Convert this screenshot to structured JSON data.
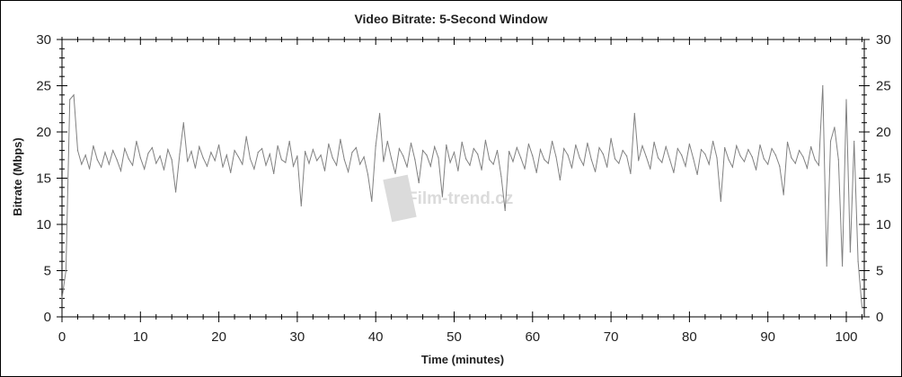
{
  "chart_data": {
    "type": "line",
    "title": "Video Bitrate: 5-Second Window",
    "xlabel": "Time (minutes)",
    "ylabel": "Bitrate (Mbps)",
    "xlim": [
      0,
      102.3
    ],
    "ylim": [
      0,
      30
    ],
    "x_ticks": [
      "0",
      "10",
      "20",
      "30",
      "40",
      "50",
      "60",
      "70",
      "80",
      "90",
      "100"
    ],
    "y_ticks": [
      "0",
      "5",
      "10",
      "15",
      "20",
      "25",
      "30"
    ],
    "right_y_ticks": [
      "0",
      "5",
      "10",
      "15",
      "20",
      "25",
      "30"
    ],
    "grid": false,
    "legend": "none",
    "watermark": "Film-trend.cz",
    "colors": {
      "line": "#808080",
      "axis": "#000000",
      "watermark": "#d8d8d8"
    },
    "series": [
      {
        "x_step": 0.5,
        "values": [
          2,
          5,
          23.5,
          24,
          18,
          16.5,
          17.5,
          16,
          18.5,
          17,
          16.2,
          17.8,
          16.5,
          18,
          17,
          15.8,
          18.2,
          17.1,
          16.4,
          19,
          17.2,
          16,
          17.7,
          18.3,
          16.6,
          17.4,
          15.9,
          18.1,
          17,
          13.5,
          17.6,
          21,
          16.8,
          17.9,
          16.1,
          18.4,
          17.2,
          16.3,
          17.8,
          16.9,
          18.6,
          16.2,
          17.5,
          15.6,
          18,
          17.3,
          16.5,
          19.5,
          17.1,
          16,
          17.8,
          18.2,
          16.4,
          17.6,
          15.5,
          18.5,
          17,
          16.7,
          19,
          16.3,
          17.4,
          12,
          17.9,
          16.6,
          18.1,
          16.9,
          17.5,
          15.8,
          18.7,
          17.2,
          16.4,
          19.2,
          17,
          15.7,
          17.8,
          18.3,
          16.5,
          17.3,
          15.4,
          12.5,
          18.5,
          22,
          16.8,
          19,
          17.1,
          15.5,
          18.2,
          17.4,
          16.2,
          18.8,
          17,
          14.5,
          18,
          17.5,
          16.3,
          18.4,
          17.2,
          13,
          18.6,
          16.7,
          17.8,
          15.8,
          18.9,
          17.1,
          16.4,
          18.2,
          17.6,
          15.9,
          19.1,
          17,
          16.5,
          18,
          15.2,
          11.5,
          17.9,
          16.8,
          18.3,
          17.2,
          16,
          18.7,
          17.4,
          15.6,
          18.1,
          17,
          16.6,
          19,
          17.3,
          14.8,
          18.2,
          17.5,
          16.1,
          18.6,
          17.2,
          16.4,
          18.8,
          17,
          15.7,
          18.3,
          17.6,
          16.2,
          19.3,
          17.1,
          16.6,
          18,
          17.4,
          15.5,
          22,
          16.9,
          18.5,
          17.3,
          16,
          18.9,
          17.2,
          16.7,
          18.4,
          17,
          15.6,
          18.2,
          17.5,
          16.3,
          18.7,
          17.1,
          15.4,
          18.1,
          17.6,
          16.5,
          19,
          17.2,
          12.5,
          18.3,
          17,
          16.2,
          18.5,
          17.4,
          16.8,
          18.1,
          17.3,
          15.9,
          18.6,
          17.1,
          16.5,
          18.2,
          17.5,
          16.3,
          13.2,
          18.9,
          17.2,
          16.6,
          18,
          17.3,
          16.1,
          18.4,
          17,
          16.4,
          25,
          5.5,
          19,
          20.5,
          17,
          5.5,
          23.5,
          7,
          19,
          6,
          1
        ]
      }
    ]
  }
}
